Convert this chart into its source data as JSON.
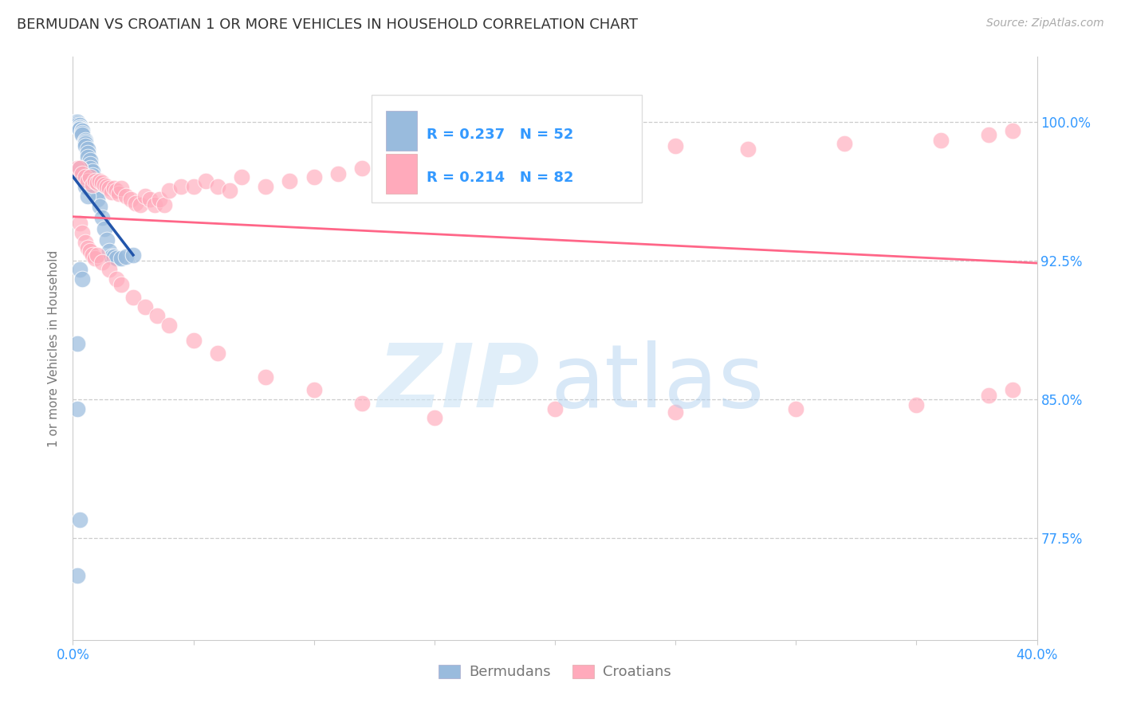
{
  "title": "BERMUDAN VS CROATIAN 1 OR MORE VEHICLES IN HOUSEHOLD CORRELATION CHART",
  "source": "Source: ZipAtlas.com",
  "ylabel": "1 or more Vehicles in Household",
  "ylabel_ticks": [
    "100.0%",
    "92.5%",
    "85.0%",
    "77.5%"
  ],
  "ylabel_values": [
    1.0,
    0.925,
    0.85,
    0.775
  ],
  "xlim": [
    0.0,
    0.4
  ],
  "ylim": [
    0.72,
    1.035
  ],
  "legend_r_blue": "R = 0.237",
  "legend_n_blue": "N = 52",
  "legend_r_pink": "R = 0.214",
  "legend_n_pink": "N = 82",
  "blue_color": "#99bbdd",
  "pink_color": "#ffaabb",
  "blue_line_color": "#2255aa",
  "pink_line_color": "#ff6688",
  "title_color": "#333333",
  "tick_label_color": "#3399FF",
  "axis_label_color": "#777777",
  "grid_color": "#cccccc",
  "source_color": "#aaaaaa",
  "legend_text_dark": "#222222",
  "legend_text_blue": "#3399FF",
  "bermudans_x": [
    0.001,
    0.001,
    0.002,
    0.002,
    0.002,
    0.002,
    0.003,
    0.003,
    0.003,
    0.003,
    0.003,
    0.004,
    0.004,
    0.004,
    0.004,
    0.005,
    0.005,
    0.005,
    0.005,
    0.006,
    0.006,
    0.006,
    0.007,
    0.007,
    0.007,
    0.008,
    0.008,
    0.009,
    0.009,
    0.01,
    0.01,
    0.011,
    0.012,
    0.013,
    0.014,
    0.015,
    0.016,
    0.017,
    0.018,
    0.02,
    0.022,
    0.025,
    0.003,
    0.004,
    0.005,
    0.006,
    0.003,
    0.004,
    0.002,
    0.002,
    0.003,
    0.002
  ],
  "bermudans_y": [
    1.0,
    1.0,
    1.0,
    1.0,
    0.999,
    0.998,
    0.998,
    0.997,
    0.997,
    0.996,
    0.996,
    0.995,
    0.995,
    0.994,
    0.993,
    0.99,
    0.989,
    0.988,
    0.987,
    0.985,
    0.983,
    0.981,
    0.979,
    0.977,
    0.975,
    0.973,
    0.971,
    0.968,
    0.965,
    0.962,
    0.958,
    0.954,
    0.948,
    0.942,
    0.936,
    0.93,
    0.927,
    0.927,
    0.926,
    0.926,
    0.927,
    0.928,
    0.975,
    0.97,
    0.965,
    0.96,
    0.92,
    0.915,
    0.88,
    0.845,
    0.785,
    0.755
  ],
  "croatians_x": [
    0.002,
    0.003,
    0.004,
    0.005,
    0.006,
    0.007,
    0.008,
    0.009,
    0.01,
    0.011,
    0.012,
    0.013,
    0.014,
    0.015,
    0.016,
    0.017,
    0.018,
    0.019,
    0.02,
    0.022,
    0.024,
    0.026,
    0.028,
    0.03,
    0.032,
    0.034,
    0.036,
    0.038,
    0.04,
    0.045,
    0.05,
    0.055,
    0.06,
    0.065,
    0.07,
    0.08,
    0.09,
    0.1,
    0.11,
    0.12,
    0.13,
    0.14,
    0.15,
    0.16,
    0.17,
    0.18,
    0.2,
    0.22,
    0.25,
    0.28,
    0.32,
    0.36,
    0.38,
    0.39,
    0.003,
    0.004,
    0.005,
    0.006,
    0.007,
    0.008,
    0.009,
    0.01,
    0.012,
    0.015,
    0.018,
    0.02,
    0.025,
    0.03,
    0.035,
    0.04,
    0.05,
    0.06,
    0.08,
    0.1,
    0.12,
    0.15,
    0.2,
    0.25,
    0.3,
    0.35,
    0.38,
    0.39
  ],
  "croatians_y": [
    0.975,
    0.975,
    0.972,
    0.97,
    0.968,
    0.97,
    0.966,
    0.968,
    0.967,
    0.968,
    0.967,
    0.966,
    0.965,
    0.964,
    0.962,
    0.964,
    0.963,
    0.961,
    0.964,
    0.96,
    0.958,
    0.956,
    0.955,
    0.96,
    0.958,
    0.955,
    0.958,
    0.955,
    0.963,
    0.965,
    0.965,
    0.968,
    0.965,
    0.963,
    0.97,
    0.965,
    0.968,
    0.97,
    0.972,
    0.975,
    0.973,
    0.974,
    0.975,
    0.976,
    0.977,
    0.978,
    0.982,
    0.984,
    0.987,
    0.985,
    0.988,
    0.99,
    0.993,
    0.995,
    0.945,
    0.94,
    0.935,
    0.932,
    0.93,
    0.928,
    0.926,
    0.928,
    0.924,
    0.92,
    0.915,
    0.912,
    0.905,
    0.9,
    0.895,
    0.89,
    0.882,
    0.875,
    0.862,
    0.855,
    0.848,
    0.84,
    0.845,
    0.843,
    0.845,
    0.847,
    0.852,
    0.855
  ]
}
